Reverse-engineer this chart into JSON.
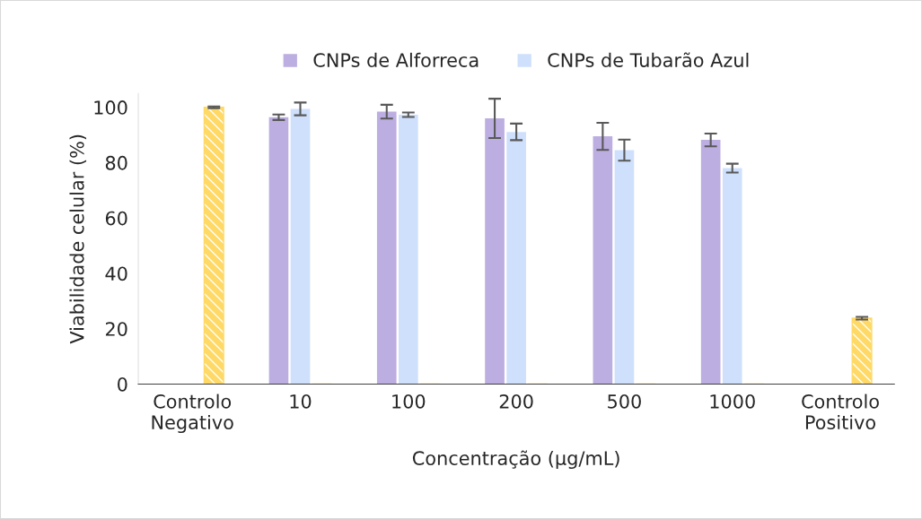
{
  "chart_data": {
    "type": "bar",
    "xlabel": "Concentração (µg/mL)",
    "ylabel": "Viabilidade celular (%)",
    "categories": [
      "Controlo\nNegativo",
      "10",
      "100",
      "200",
      "500",
      "1000",
      "Controlo\nPositivo"
    ],
    "series": [
      {
        "name": "CNPs de Alforreca",
        "color": "#bcaee0",
        "values": [
          0,
          96.4,
          98.4,
          96,
          89.5,
          88.2,
          0
        ],
        "errors": [
          null,
          1.0,
          2.5,
          7.1,
          4.9,
          2.3,
          null
        ]
      },
      {
        "name": "CNPs de Tubarão Azul",
        "color": "#cfe0fc",
        "values": [
          0,
          99.4,
          97.3,
          91.1,
          84.5,
          78,
          0
        ],
        "errors": [
          null,
          2.3,
          0.8,
          3,
          3.8,
          1.6,
          null
        ]
      },
      {
        "color": "#ffd966",
        "values": [
          100,
          0,
          0,
          0,
          0,
          0,
          23.8
        ],
        "errors": [
          0.3,
          null,
          null,
          null,
          null,
          null,
          0.5
        ]
      }
    ],
    "ylim": [
      0,
      105
    ],
    "yticks": [
      0,
      20,
      40,
      60,
      80,
      100
    ],
    "grid": false,
    "legend": "top"
  }
}
